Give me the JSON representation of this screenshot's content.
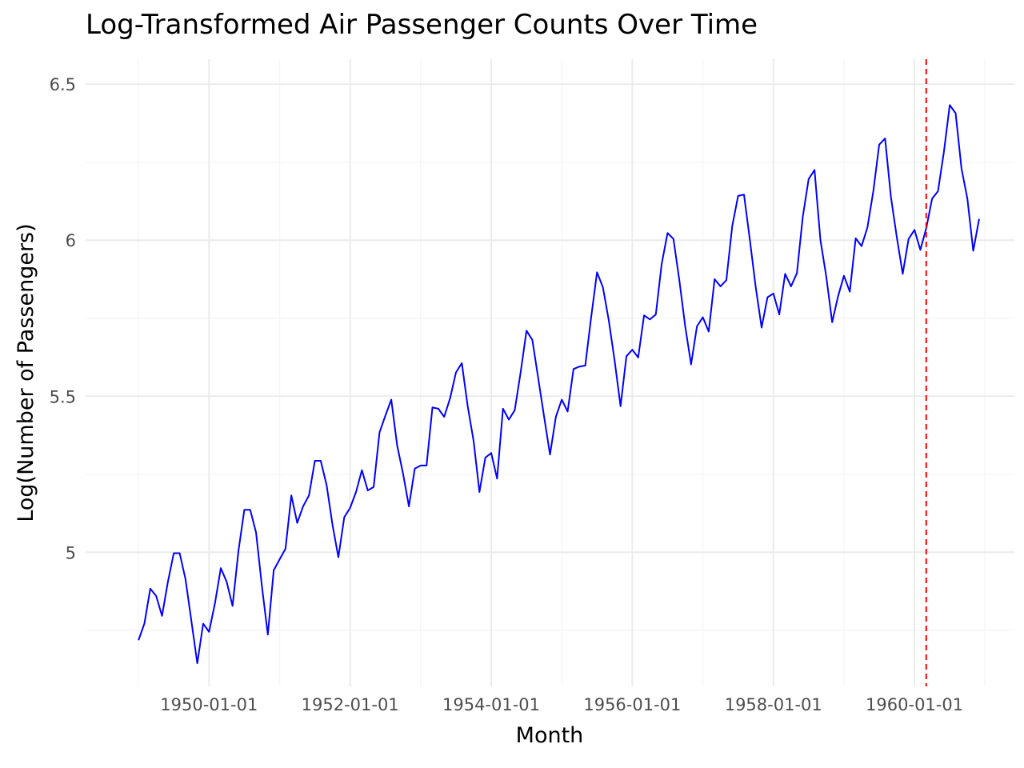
{
  "chart_data": {
    "type": "line",
    "title": "Log-Transformed Air Passenger Counts Over Time",
    "xlabel": "Month",
    "ylabel": "Log(Number of Passengers)",
    "x_tick_labels": [
      "1950-01-01",
      "1952-01-01",
      "1954-01-01",
      "1956-01-01",
      "1958-01-01",
      "1960-01-01"
    ],
    "y_tick_labels": [
      "5",
      "5.5",
      "6",
      "6.5"
    ],
    "ylim": [
      4.57,
      6.58
    ],
    "xlim": [
      "1948-04-01",
      "1961-06-01"
    ],
    "grid": true,
    "line_color": "#0000ff",
    "vline": {
      "x": "1960-03-01",
      "color": "#ff0000",
      "style": "dashed"
    },
    "series": [
      {
        "start": "1949-01",
        "frequency": "monthly",
        "values": [
          4.718,
          4.771,
          4.883,
          4.86,
          4.796,
          4.905,
          4.997,
          4.997,
          4.913,
          4.779,
          4.644,
          4.771,
          4.745,
          4.836,
          4.949,
          4.905,
          4.828,
          5.004,
          5.136,
          5.136,
          5.063,
          4.89,
          4.736,
          4.942,
          4.977,
          5.011,
          5.182,
          5.094,
          5.147,
          5.182,
          5.293,
          5.293,
          5.215,
          5.088,
          4.984,
          5.112,
          5.142,
          5.193,
          5.263,
          5.198,
          5.209,
          5.384,
          5.438,
          5.489,
          5.342,
          5.252,
          5.147,
          5.268,
          5.278,
          5.278,
          5.464,
          5.46,
          5.434,
          5.493,
          5.576,
          5.606,
          5.468,
          5.357,
          5.193,
          5.303,
          5.318,
          5.236,
          5.46,
          5.425,
          5.455,
          5.576,
          5.71,
          5.68,
          5.557,
          5.434,
          5.313,
          5.434,
          5.489,
          5.451,
          5.587,
          5.595,
          5.598,
          5.753,
          5.897,
          5.849,
          5.743,
          5.613,
          5.468,
          5.628,
          5.649,
          5.624,
          5.759,
          5.746,
          5.762,
          5.924,
          6.023,
          6.004,
          5.872,
          5.724,
          5.602,
          5.724,
          5.753,
          5.707,
          5.875,
          5.852,
          5.872,
          6.045,
          6.142,
          6.146,
          6.001,
          5.849,
          5.72,
          5.817,
          5.829,
          5.762,
          5.892,
          5.852,
          5.894,
          6.075,
          6.196,
          6.225,
          6.001,
          5.883,
          5.737,
          5.82,
          5.886,
          5.835,
          6.006,
          5.981,
          6.041,
          6.157,
          6.306,
          6.326,
          6.138,
          6.009,
          5.892,
          6.004,
          6.033,
          5.969,
          6.038,
          6.133,
          6.157,
          6.282,
          6.433,
          6.407,
          6.23,
          6.133,
          5.966,
          6.068
        ]
      }
    ]
  }
}
